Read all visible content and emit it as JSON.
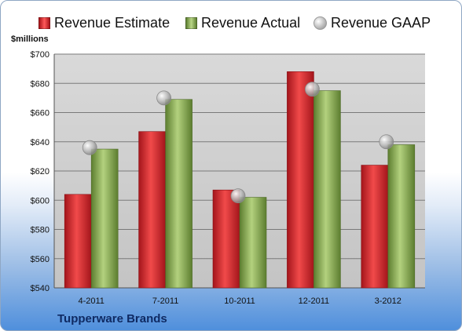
{
  "chart_data": {
    "type": "bar",
    "ylabel": "$millions",
    "ylim": [
      540,
      700
    ],
    "yticks": [
      "$540",
      "$560",
      "$580",
      "$600",
      "$620",
      "$640",
      "$660",
      "$680",
      "$700"
    ],
    "categories": [
      "4-2011",
      "7-2011",
      "10-2011",
      "12-2011",
      "3-2012"
    ],
    "series": [
      {
        "name": "Revenue Estimate",
        "kind": "bar",
        "color": "#d9242b",
        "values": [
          604,
          647,
          607,
          688,
          624
        ]
      },
      {
        "name": "Revenue Actual",
        "kind": "bar",
        "color": "#8aae54",
        "values": [
          635,
          669,
          602,
          675,
          638
        ]
      },
      {
        "name": "Revenue GAAP",
        "kind": "marker",
        "color": "#b8b8b8",
        "values": [
          636,
          670,
          603,
          676,
          640
        ]
      }
    ],
    "grid": true,
    "legend_position": "top",
    "footer_label": "Tupperware Brands"
  }
}
